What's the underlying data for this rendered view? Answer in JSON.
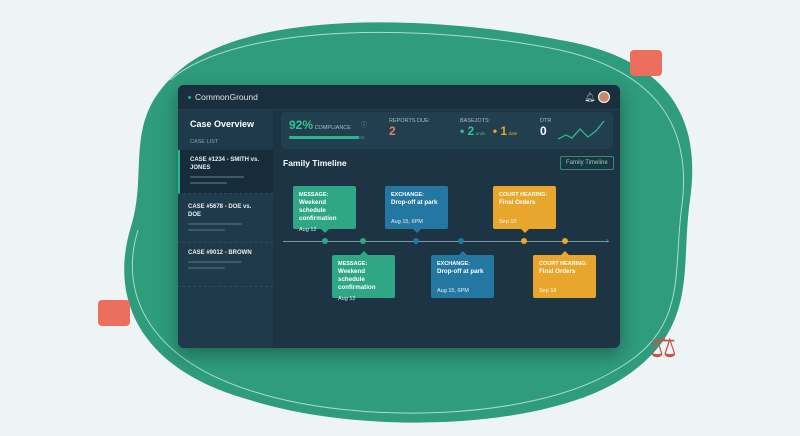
{
  "colors": {
    "accent": "#2fa686",
    "exchange": "#2377a0",
    "court": "#e9a62c",
    "background": "#eef4f5",
    "blob": "#2e9c7d"
  },
  "app": {
    "name": "CommonGround",
    "notification_icon": "bell-icon",
    "avatar": "user-avatar"
  },
  "sidebar": {
    "title": "Case Overview",
    "section": "CASE LIST",
    "cases": [
      {
        "label": "CASE #1234 - SMITH vs. JONES",
        "active": true
      },
      {
        "label": "CASE #5678 - DOE vs. DOE",
        "active": false
      },
      {
        "label": "CASE #9012 - BROWN",
        "active": false
      }
    ]
  },
  "kpis": {
    "compliance_value": "92%",
    "compliance_label": "COMPLIANCE",
    "compliance_progress": 0.92,
    "reports_label": "REPORTS DUE:",
    "reports_value": "2",
    "basejots_label": "BASEJOTS:",
    "basejots_a": "2",
    "basejots_a_unit": "units",
    "basejots_b": "1",
    "basejots_b_unit": "date",
    "dtr_label": "DTR",
    "dtr_value": "0"
  },
  "timeline": {
    "title": "Family Timeline",
    "button": "Family Timeline",
    "events": [
      {
        "kind": "MESSAGE:",
        "title": "Weekend schedule confirmation",
        "date": "Aug 12"
      },
      {
        "kind": "MESSAGE:",
        "title": "Weekend schedule confirmation",
        "date": "Aug 12"
      },
      {
        "kind": "EXCHANGE:",
        "title": "Drop-off at park",
        "date": "Aug 15, 6PM"
      },
      {
        "kind": "EXCHANGE:",
        "title": "Drop-off at park",
        "date": "Aug 15, 6PM"
      },
      {
        "kind": "COURT HEARING:",
        "title": "Final Orders",
        "date": "Sep 10"
      },
      {
        "kind": "COURT HEARING:",
        "title": "Final Orders",
        "date": "Sep 18"
      }
    ]
  }
}
